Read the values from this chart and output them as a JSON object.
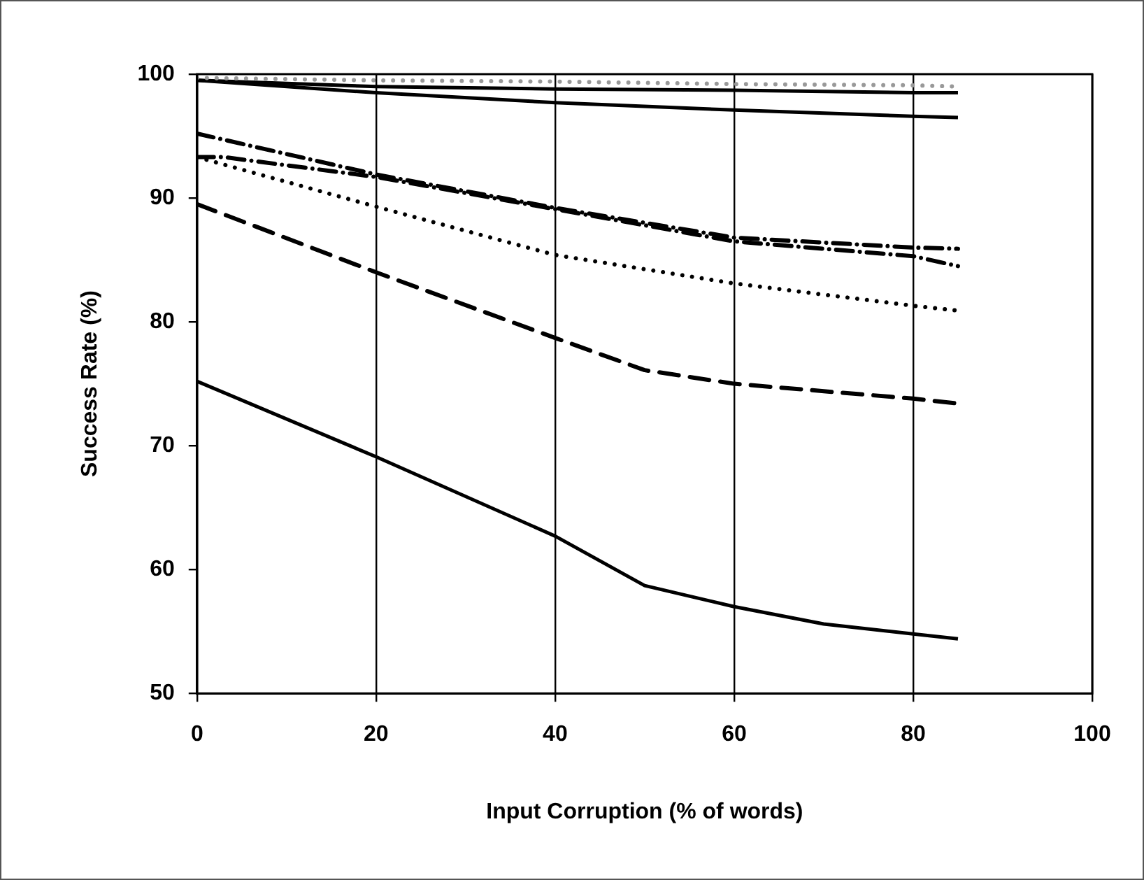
{
  "chart_data": {
    "type": "line",
    "xlabel": "Input Corruption (% of words)",
    "ylabel": "Success Rate (%)",
    "xlim": [
      0,
      100
    ],
    "xticks": [
      0,
      20,
      40,
      60,
      80,
      100
    ],
    "ylim": [
      50,
      100
    ],
    "yticks": [
      50,
      60,
      70,
      80,
      90,
      100
    ],
    "grid": "x",
    "legend": false,
    "marker": "none",
    "series": [
      {
        "color": "#999999",
        "line_style": "dotted",
        "x": [
          0,
          20,
          40,
          60,
          80,
          85
        ],
        "values": [
          99.7,
          99.5,
          99.4,
          99.2,
          99.1,
          99.0
        ]
      },
      {
        "color": "#000000",
        "line_style": "solid",
        "x": [
          0,
          20,
          40,
          60,
          80,
          85
        ],
        "values": [
          99.5,
          99.0,
          98.8,
          98.7,
          98.5,
          98.5
        ]
      },
      {
        "color": "#000000",
        "line_style": "solid",
        "x": [
          0,
          20,
          40,
          60,
          80,
          85
        ],
        "values": [
          99.5,
          98.5,
          97.7,
          97.1,
          96.6,
          96.5
        ]
      },
      {
        "color": "#000000",
        "line_style": "dashdot",
        "x": [
          0,
          20,
          40,
          60,
          80,
          85
        ],
        "values": [
          95.2,
          91.9,
          89.2,
          86.8,
          86.0,
          85.9
        ]
      },
      {
        "color": "#000000",
        "line_style": "dashdot",
        "x": [
          0,
          3,
          20,
          40,
          60,
          80,
          85
        ],
        "values": [
          93.3,
          93.3,
          91.7,
          89.1,
          86.5,
          85.3,
          84.5
        ]
      },
      {
        "color": "#000000",
        "line_style": "dotted",
        "x": [
          0,
          20,
          40,
          60,
          80,
          85
        ],
        "values": [
          93.3,
          89.3,
          85.4,
          83.1,
          81.3,
          80.9
        ]
      },
      {
        "color": "#000000",
        "line_style": "dashed",
        "x": [
          0,
          20,
          40,
          50,
          60,
          80,
          85
        ],
        "values": [
          89.5,
          84.0,
          78.7,
          76.1,
          75.0,
          73.8,
          73.4
        ]
      },
      {
        "color": "#000000",
        "line_style": "solid",
        "x": [
          0,
          20,
          40,
          50,
          60,
          70,
          80,
          85
        ],
        "values": [
          75.2,
          69.1,
          62.7,
          58.7,
          57.0,
          55.6,
          54.8,
          54.4
        ]
      }
    ]
  }
}
